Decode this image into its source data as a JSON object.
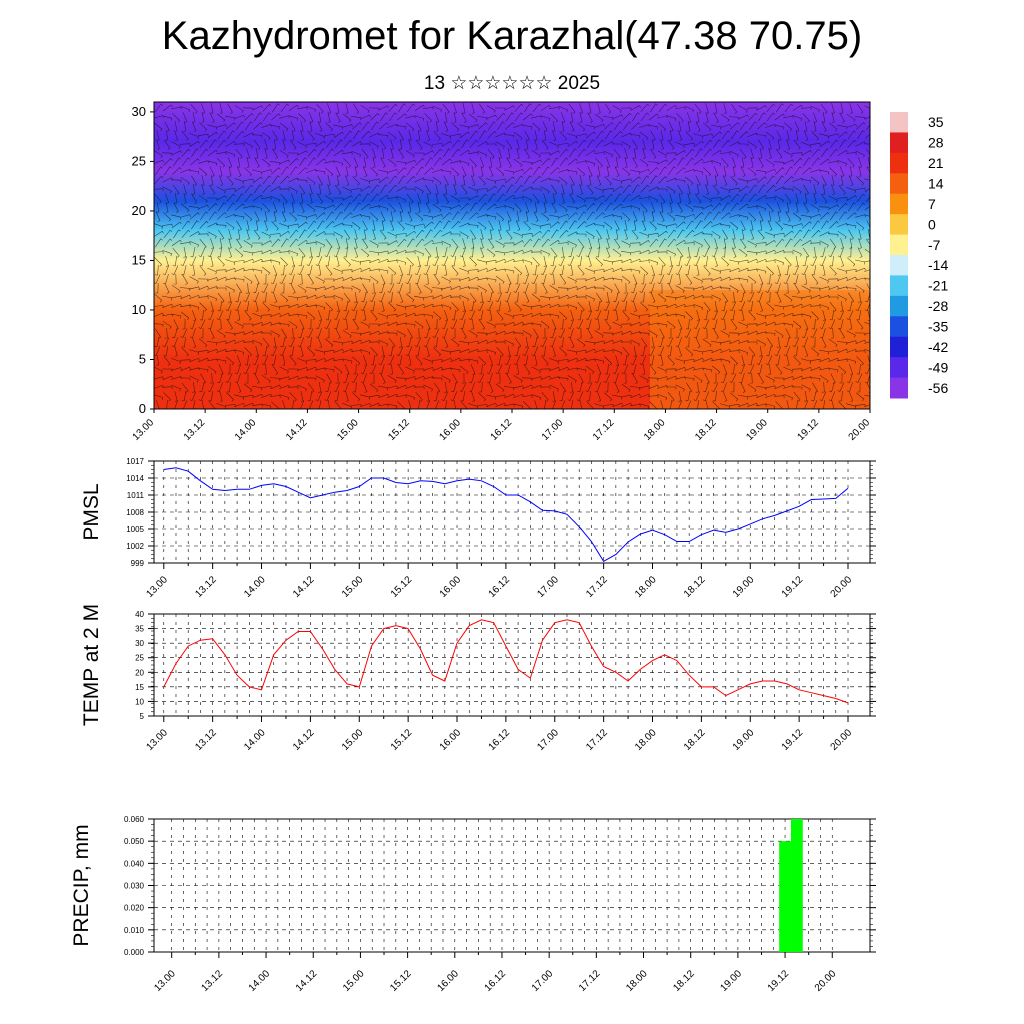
{
  "header": {
    "title": "Kazhydromet for Karazhal(47.38 70.75)",
    "subtitle": "13 ☆☆☆☆☆☆ 2025"
  },
  "time_labels": [
    "13.00",
    "13.12",
    "14.00",
    "14.12",
    "15.00",
    "15.12",
    "16.00",
    "16.12",
    "17.00",
    "17.12",
    "18.00",
    "18.12",
    "19.00",
    "19.12",
    "20.00"
  ],
  "chart_data": [
    {
      "type": "heatmap",
      "name": "cross-section",
      "x": [
        "13.00",
        "13.12",
        "14.00",
        "14.12",
        "15.00",
        "15.12",
        "16.00",
        "16.12",
        "17.00",
        "17.12",
        "18.00",
        "18.12",
        "19.00",
        "19.12",
        "20.00"
      ],
      "ylim": [
        0,
        31
      ],
      "yticks": [
        0,
        5,
        10,
        15,
        20,
        25,
        30
      ],
      "colorbar": {
        "labels": [
          "35",
          "28",
          "21",
          "14",
          "7",
          "0",
          "-7",
          "-14",
          "-21",
          "-28",
          "-35",
          "-42",
          "-49",
          "-56"
        ],
        "colors": [
          "#f4c4c4",
          "#e02020",
          "#ee3010",
          "#f46010",
          "#f99010",
          "#fbc840",
          "#fff090",
          "#cfeefa",
          "#4ec8f0",
          "#209ae0",
          "#1c50e0",
          "#2020d8",
          "#5a28e8",
          "#8a34e8"
        ]
      },
      "levels_temp": [
        {
          "y": 0,
          "temp": 24
        },
        {
          "y": 5,
          "temp": 21
        },
        {
          "y": 10,
          "temp": 12
        },
        {
          "y": 15,
          "temp": -6
        },
        {
          "y": 18,
          "temp": -22
        },
        {
          "y": 21,
          "temp": -38
        },
        {
          "y": 24,
          "temp": -54
        },
        {
          "y": 27,
          "temp": -52
        },
        {
          "y": 31,
          "temp": -58
        }
      ]
    },
    {
      "type": "line",
      "name": "pmsl",
      "ylabel": "PMSL",
      "ylim": [
        999,
        1017
      ],
      "yticks": [
        999,
        1002,
        1005,
        1008,
        1011,
        1014,
        1017
      ],
      "color": "#0000ff",
      "x_index": [
        0,
        0.5,
        1,
        1.5,
        2,
        2.5,
        3,
        3.5,
        4,
        4.5,
        5,
        5.5,
        6,
        6.5,
        7,
        7.5,
        8,
        8.5,
        9,
        9.5,
        10,
        10.5,
        11,
        11.5,
        12,
        12.5,
        13,
        13.5,
        14,
        14.5,
        15,
        15.5,
        16,
        16.5,
        17,
        17.5,
        18,
        18.5,
        19,
        19.5,
        20,
        20.5,
        21,
        21.5,
        22,
        22.5,
        23,
        23.5,
        24,
        24.5,
        25,
        25.5,
        26,
        26.5,
        27,
        27.5,
        28
      ],
      "values": [
        1015.5,
        1015.8,
        1015.2,
        1013.5,
        1012.0,
        1011.8,
        1012.0,
        1012.0,
        1012.7,
        1013.0,
        1012.5,
        1011.5,
        1010.5,
        1011.0,
        1011.5,
        1011.8,
        1012.5,
        1014.0,
        1014.0,
        1013.2,
        1013.0,
        1013.5,
        1013.4,
        1013.0,
        1013.5,
        1013.8,
        1013.5,
        1012.5,
        1011.0,
        1011.0,
        1009.8,
        1008.3,
        1008.2,
        1007.6,
        1005.4,
        1002.8,
        999.3,
        1000.5,
        1002.7,
        1004.1,
        1004.8,
        1004.0,
        1002.8,
        1002.8,
        1004.0,
        1004.8,
        1004.4,
        1005.0,
        1005.9,
        1006.8,
        1007.4,
        1008.2,
        1009.0,
        1010.2,
        1010.3,
        1010.4,
        1012.2
      ]
    },
    {
      "type": "line",
      "name": "temp2m",
      "ylabel": "TEMP at 2 M",
      "ylim": [
        5,
        40
      ],
      "yticks": [
        5,
        10,
        15,
        20,
        25,
        30,
        35,
        40
      ],
      "color": "#ff0000",
      "x_index": [
        0,
        0.5,
        1,
        1.5,
        2,
        2.5,
        3,
        3.5,
        4,
        4.5,
        5,
        5.5,
        6,
        6.5,
        7,
        7.5,
        8,
        8.5,
        9,
        9.5,
        10,
        10.5,
        11,
        11.5,
        12,
        12.5,
        13,
        13.5,
        14,
        14.5,
        15,
        15.5,
        16,
        16.5,
        17,
        17.5,
        18,
        18.5,
        19,
        19.5,
        20,
        20.5,
        21,
        21.5,
        22,
        22.5,
        23,
        23.5,
        24,
        24.5,
        25,
        25.5,
        26,
        26.5,
        27,
        27.5,
        28
      ],
      "values": [
        15,
        23,
        29,
        31,
        31.5,
        26,
        19,
        15,
        14,
        26,
        31,
        34,
        34,
        28,
        21,
        16,
        15,
        29,
        35,
        36,
        35,
        28,
        19,
        17,
        30,
        36,
        38,
        37,
        29,
        21,
        18,
        31,
        37,
        38,
        37,
        29,
        22,
        20,
        17,
        21,
        24,
        26,
        24,
        19,
        15,
        15,
        12,
        14,
        16,
        17,
        17,
        16,
        14,
        13,
        12,
        11,
        9.5
      ]
    },
    {
      "type": "bar",
      "name": "precip",
      "ylabel": "PRECIP, mm",
      "ylim": [
        0.0,
        0.06
      ],
      "yticks": [
        "0.000",
        "0.010",
        "0.020",
        "0.030",
        "0.040",
        "0.050",
        "0.060"
      ],
      "color": "#00ff00",
      "bars": [
        {
          "x_index": 26.0,
          "value": 0.05
        },
        {
          "x_index": 26.5,
          "value": 0.06
        }
      ]
    }
  ]
}
